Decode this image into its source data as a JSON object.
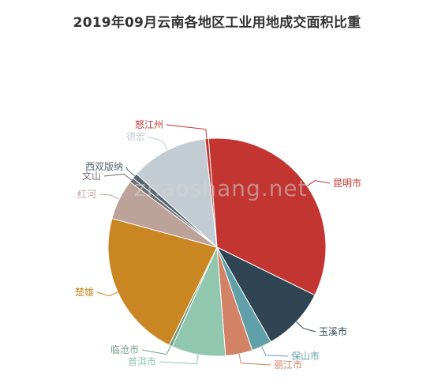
{
  "chart_data": {
    "type": "pie",
    "title": "2019年09月云南各地区工业用地成交面积比重",
    "slices": [
      {
        "name": "昆明市",
        "value": 33.5,
        "color": "#c23531"
      },
      {
        "name": "玉溪市",
        "value": 9.5,
        "color": "#2f4554"
      },
      {
        "name": "保山市",
        "value": 3.0,
        "color": "#61a0a8"
      },
      {
        "name": "丽江市",
        "value": 4.0,
        "color": "#d48265"
      },
      {
        "name": "普洱市",
        "value": 8.0,
        "color": "#91c7ae"
      },
      {
        "name": "临沧市",
        "value": 0.5,
        "color": "#749f83"
      },
      {
        "name": "楚雄",
        "value": 22.0,
        "color": "#ca8622"
      },
      {
        "name": "红河",
        "value": 6.0,
        "color": "#bda29a"
      },
      {
        "name": "文山",
        "value": 0.7,
        "color": "#6e7074"
      },
      {
        "name": "西双版纳",
        "value": 0.8,
        "color": "#546570"
      },
      {
        "name": "德宏",
        "value": 11.5,
        "color": "#c4ccd3"
      },
      {
        "name": "怒江州",
        "value": 0.5,
        "color": "#c23531"
      }
    ]
  },
  "watermark": "zhaoshang.net"
}
